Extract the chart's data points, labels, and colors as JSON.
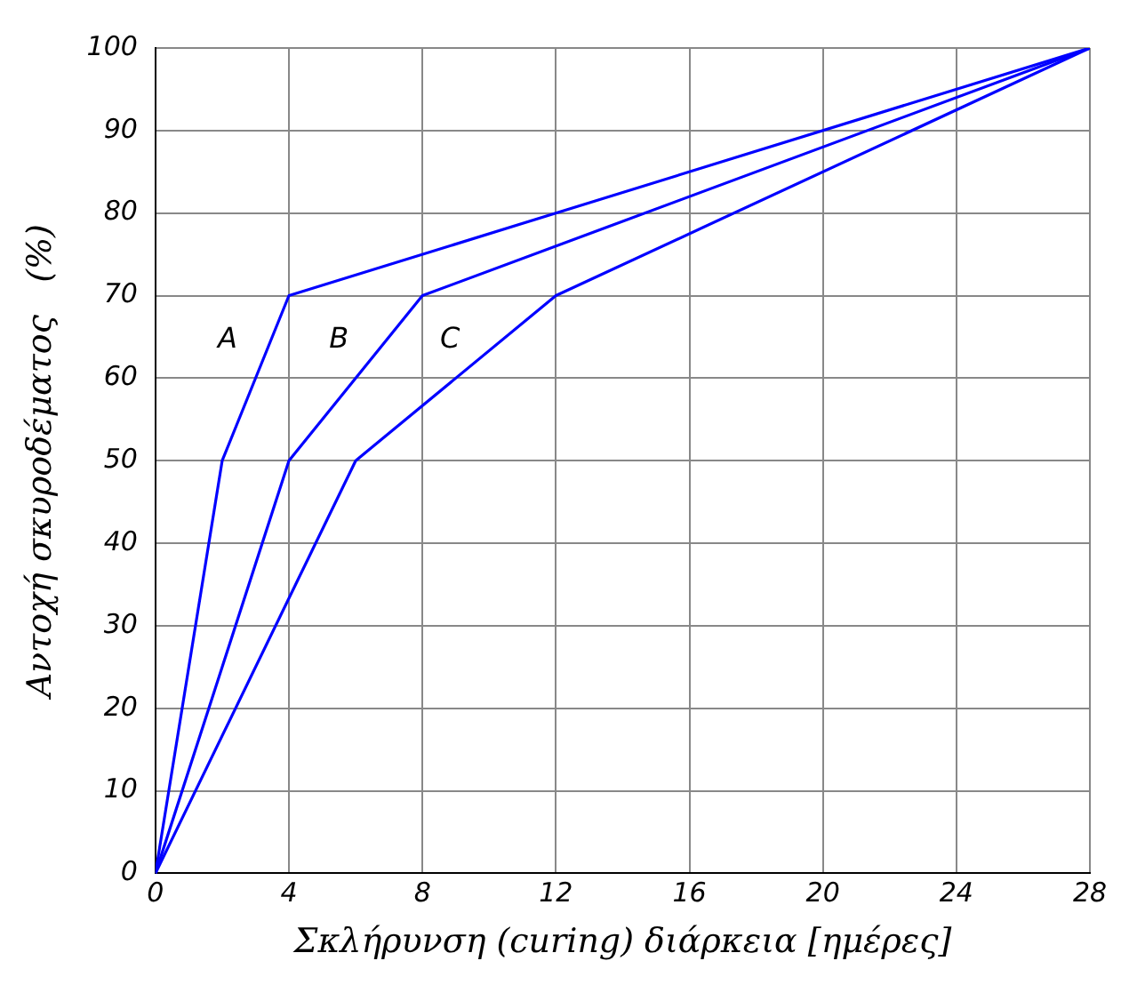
{
  "chart_data": {
    "type": "line",
    "xlabel": "Σκλήρυνση (curing) διάρκεια [ημέρες]",
    "ylabel": "Αντοχή σκυροδέματος   (%)",
    "series": [
      {
        "name": "A",
        "color": "#0000ff",
        "x": [
          0,
          2,
          4,
          28
        ],
        "values": [
          0,
          50,
          70,
          100
        ]
      },
      {
        "name": "B",
        "color": "#0000ff",
        "x": [
          0,
          4,
          8,
          28
        ],
        "values": [
          0,
          50,
          70,
          100
        ]
      },
      {
        "name": "C",
        "color": "#0000ff",
        "x": [
          0,
          6,
          12,
          28
        ],
        "values": [
          0,
          50,
          70,
          100
        ]
      }
    ],
    "xlim": [
      0,
      28
    ],
    "xticks": [
      0,
      4,
      8,
      12,
      16,
      20,
      24,
      28
    ],
    "ylim": [
      0,
      100
    ],
    "yticks": [
      0,
      10,
      20,
      30,
      40,
      50,
      60,
      70,
      80,
      90,
      100
    ],
    "grid": true,
    "legend": false,
    "marker": "none",
    "line_style": "solid"
  }
}
